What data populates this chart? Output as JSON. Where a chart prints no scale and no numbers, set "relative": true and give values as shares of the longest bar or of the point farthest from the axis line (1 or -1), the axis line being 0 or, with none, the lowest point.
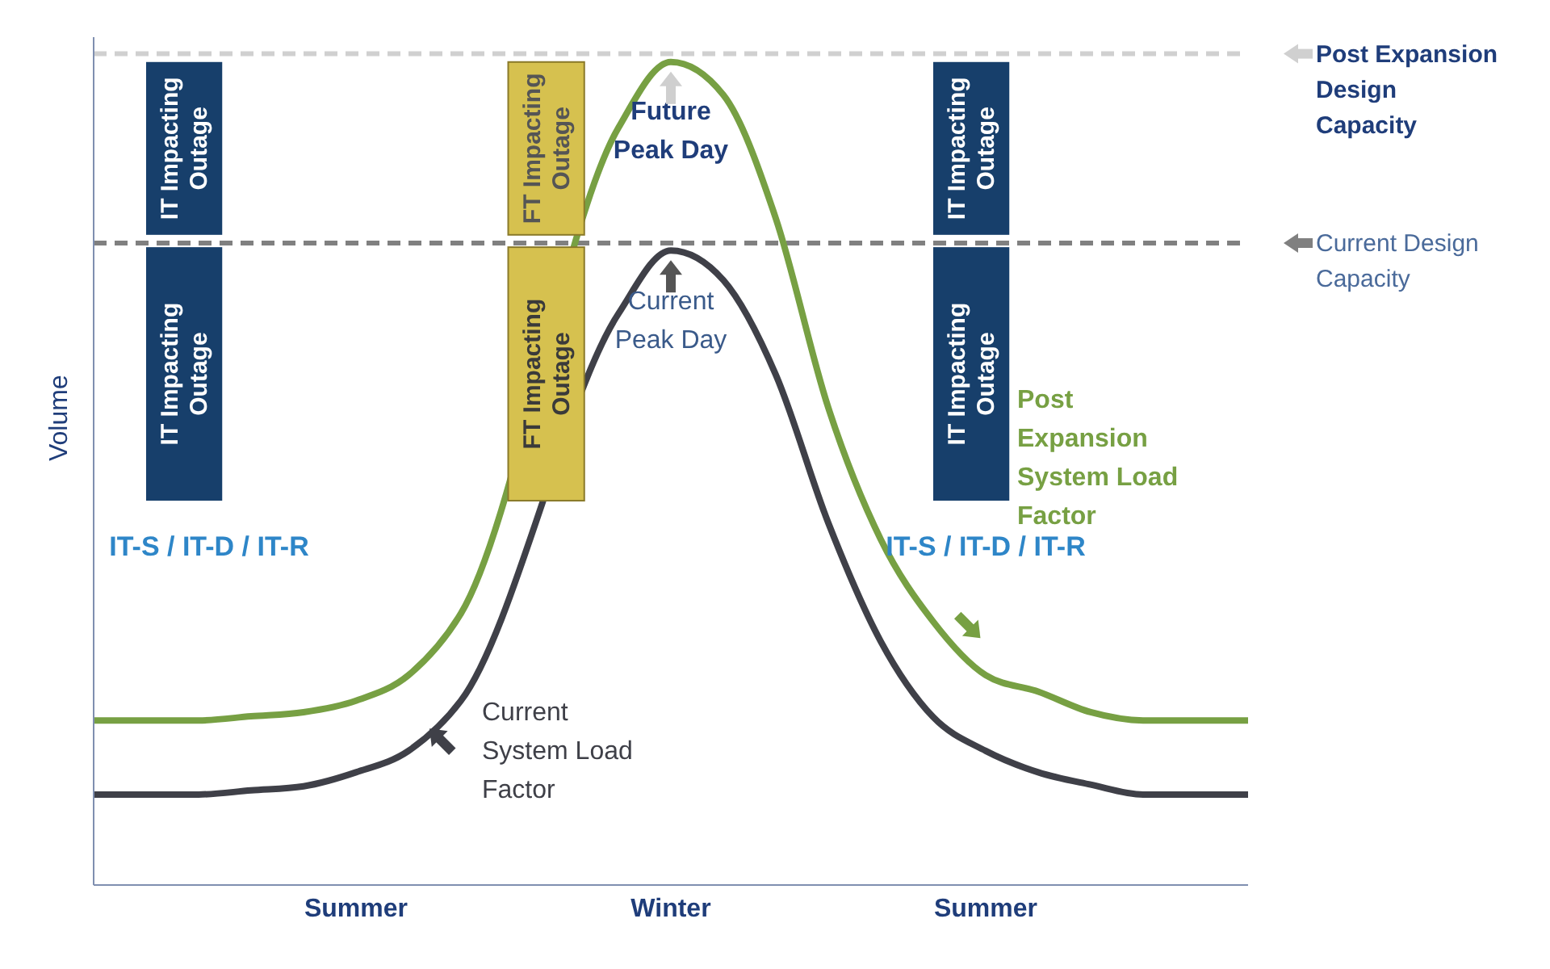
{
  "chart_data": {
    "type": "line",
    "relative": true,
    "ylabel": "Volume",
    "categories": [
      null,
      null,
      null,
      null,
      null,
      "Summer",
      null,
      null,
      null,
      null,
      null,
      "Winter",
      null,
      null,
      null,
      null,
      null,
      "Summer",
      null,
      null,
      null,
      null,
      null
    ],
    "series": [
      {
        "name": "Post Expansion System Load Factor",
        "color": "#77a043",
        "values": [
          0.2,
          0.2,
          0.2,
          0.205,
          0.21,
          0.224,
          0.255,
          0.33,
          null,
          null,
          0.92,
          1,
          0.96,
          0.81,
          0.58,
          0.42,
          0.32,
          0.255,
          0.235,
          0.21,
          0.2,
          0.2,
          0.2
        ]
      },
      {
        "name": "Current System Load Factor",
        "color": "#3f4048",
        "values": [
          0.11,
          0.11,
          0.11,
          0.115,
          0.12,
          0.137,
          0.163,
          0.224,
          null,
          null,
          0.694,
          0.771,
          0.735,
          0.62,
          0.44,
          0.296,
          0.204,
          0.163,
          0.137,
          0.122,
          0.11,
          0.11,
          0.11
        ]
      }
    ],
    "ref_lines": [
      {
        "axis": "y",
        "value": 1.01,
        "label": "Post Expansion Design Capacity",
        "color": "#d0d0d0",
        "line_style": "dashed"
      },
      {
        "axis": "y",
        "value": 0.78,
        "label": "Current Design Capacity",
        "color": "#808080",
        "line_style": "dashed"
      }
    ],
    "annotations": [
      "IT Impacting Outage",
      "IT Impacting Outage",
      "FT Impacting Outage",
      "FT Impacting Outage",
      "IT Impacting Outage",
      "IT Impacting Outage",
      "IT-S / IT-D / IT-R",
      "IT-S / IT-D / IT-R",
      "Future Peak Day",
      "Current Peak Day"
    ],
    "grid": false,
    "legend": "right",
    "marker": "none",
    "line_style": "solid"
  }
}
